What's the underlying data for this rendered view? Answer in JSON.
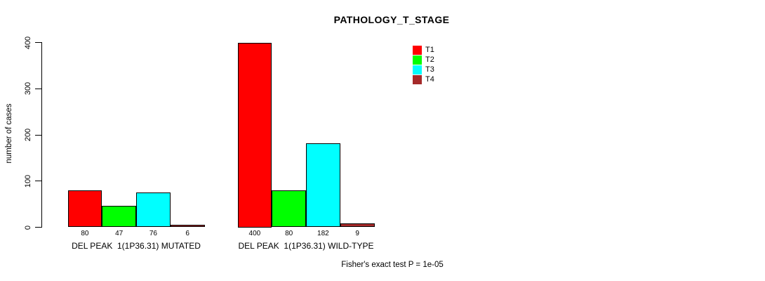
{
  "title": "PATHOLOGY_T_STAGE",
  "chart_data": {
    "type": "bar",
    "title": "PATHOLOGY_T_STAGE",
    "xlabel": "",
    "ylabel": "number of cases",
    "ylim": [
      0,
      400
    ],
    "yticks": [
      0,
      100,
      200,
      300,
      400
    ],
    "grid": false,
    "legend_position": "top-right",
    "categories": [
      "DEL PEAK  1(1P36.31) MUTATED",
      "DEL PEAK  1(1P36.31) WILD-TYPE"
    ],
    "series": [
      {
        "name": "T1",
        "color": "#FF0000",
        "values": [
          80,
          400
        ]
      },
      {
        "name": "T2",
        "color": "#00FF00",
        "values": [
          47,
          80
        ]
      },
      {
        "name": "T3",
        "color": "#00FFFF",
        "values": [
          76,
          182
        ]
      },
      {
        "name": "T4",
        "color": "#A52A2A",
        "values": [
          6,
          9
        ]
      }
    ],
    "bar_value_labels": [
      [
        "80",
        "47",
        "76",
        "6"
      ],
      [
        "400",
        "80",
        "182",
        "9"
      ]
    ],
    "annotation": "Fisher's exact test P = 1e-05",
    "colors": {
      "axis": "#000000",
      "text": "#000000",
      "background": "#FFFFFF"
    }
  }
}
